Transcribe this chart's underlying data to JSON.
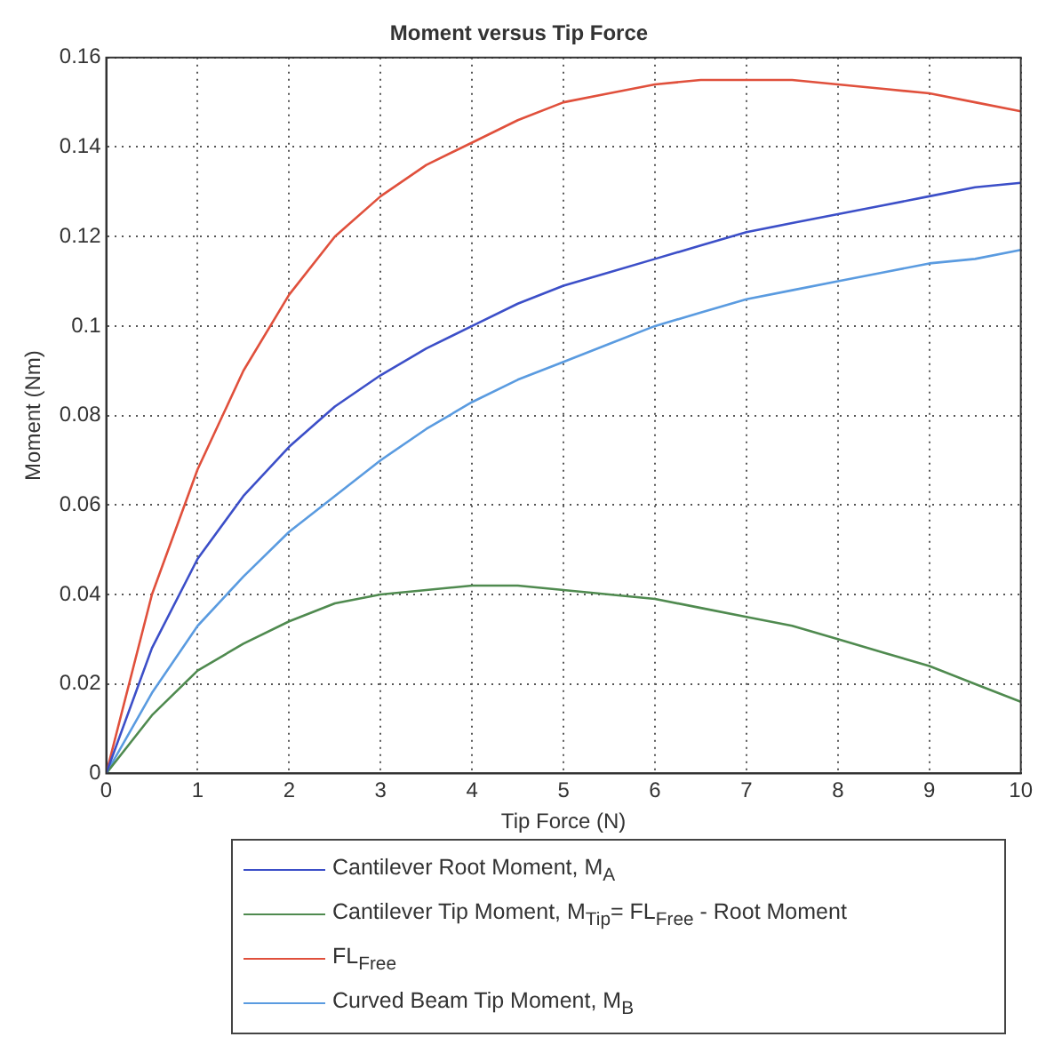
{
  "chart_data": {
    "type": "line",
    "title": "Moment versus Tip Force",
    "xlabel": "Tip Force (N)",
    "ylabel": "Moment (Nm)",
    "x": [
      0,
      0.5,
      1,
      1.5,
      2,
      2.5,
      3,
      3.5,
      4,
      4.5,
      5,
      5.5,
      6,
      6.5,
      7,
      7.5,
      8,
      8.5,
      9,
      9.5,
      10
    ],
    "series": [
      {
        "name": "Cantilever Root Moment, M$_{A}$",
        "color": "#3c4fc8",
        "values": [
          0,
          0.028,
          0.048,
          0.062,
          0.073,
          0.082,
          0.089,
          0.095,
          0.1,
          0.105,
          0.109,
          0.112,
          0.115,
          0.118,
          0.121,
          0.123,
          0.125,
          0.127,
          0.129,
          0.131,
          0.132
        ]
      },
      {
        "name": "Cantilever Tip Moment, M$_{Tip}$= FL$_{Free}$ - Root Moment",
        "color": "#4f8a4f",
        "values": [
          0,
          0.013,
          0.023,
          0.029,
          0.034,
          0.038,
          0.04,
          0.041,
          0.042,
          0.042,
          0.041,
          0.04,
          0.039,
          0.037,
          0.035,
          0.033,
          0.03,
          0.027,
          0.024,
          0.02,
          0.016
        ]
      },
      {
        "name": "FL$_{Free}$",
        "color": "#e0503c",
        "values": [
          0,
          0.04,
          0.068,
          0.09,
          0.107,
          0.12,
          0.129,
          0.136,
          0.141,
          0.146,
          0.15,
          0.152,
          0.154,
          0.155,
          0.155,
          0.155,
          0.154,
          0.153,
          0.152,
          0.15,
          0.148
        ]
      },
      {
        "name": "Curved Beam Tip Moment, M$_{B}$",
        "color": "#5a9be0",
        "values": [
          0,
          0.018,
          0.033,
          0.044,
          0.054,
          0.062,
          0.07,
          0.077,
          0.083,
          0.088,
          0.092,
          0.096,
          0.1,
          0.103,
          0.106,
          0.108,
          0.11,
          0.112,
          0.114,
          0.115,
          0.117
        ]
      }
    ],
    "xlim": [
      0,
      10
    ],
    "xticks": [
      0,
      1,
      2,
      3,
      4,
      5,
      6,
      7,
      8,
      9,
      10
    ],
    "ylim": [
      0,
      0.16
    ],
    "yticks": [
      0,
      0.02,
      0.04,
      0.06,
      0.08,
      0.1,
      0.12,
      0.14,
      0.16
    ],
    "grid": true,
    "legend": "bottom",
    "marker": "none",
    "line_style": "solid"
  }
}
